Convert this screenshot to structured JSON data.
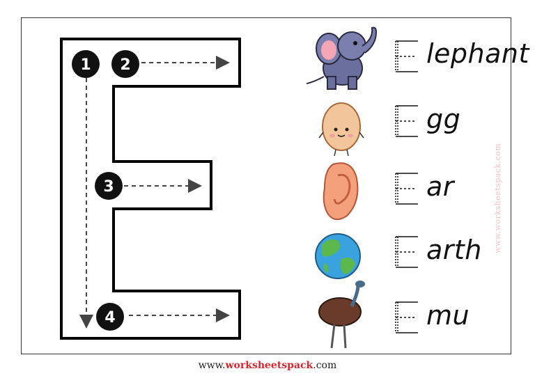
{
  "steps": [
    "1",
    "2",
    "3",
    "4"
  ],
  "words": [
    {
      "picture": "elephant-picture",
      "suffix": "lephant"
    },
    {
      "picture": "egg-picture",
      "suffix": "gg"
    },
    {
      "picture": "ear-picture",
      "suffix": "ar"
    },
    {
      "picture": "earth-picture",
      "suffix": "arth"
    },
    {
      "picture": "emu-picture",
      "suffix": "mu"
    }
  ],
  "watermark": "www.worksheetspack.com",
  "footer": {
    "prefix": "www.",
    "brand": "worksheetspack",
    "suffix": ".com"
  },
  "colors": {
    "stroke": "#000000",
    "brand": "#d8262e",
    "watermark": "#f2c2c2",
    "guide": "#555555"
  }
}
